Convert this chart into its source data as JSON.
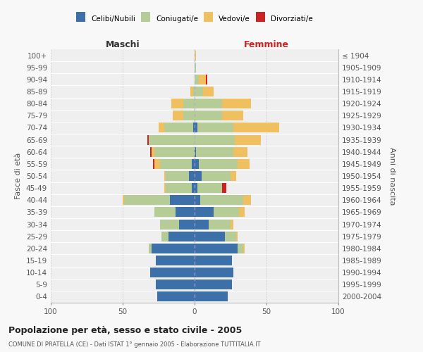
{
  "age_groups": [
    "0-4",
    "5-9",
    "10-14",
    "15-19",
    "20-24",
    "25-29",
    "30-34",
    "35-39",
    "40-44",
    "45-49",
    "50-54",
    "55-59",
    "60-64",
    "65-69",
    "70-74",
    "75-79",
    "80-84",
    "85-89",
    "90-94",
    "95-99",
    "100+"
  ],
  "birth_years": [
    "2000-2004",
    "1995-1999",
    "1990-1994",
    "1985-1989",
    "1980-1984",
    "1975-1979",
    "1970-1974",
    "1965-1969",
    "1960-1964",
    "1955-1959",
    "1950-1954",
    "1945-1949",
    "1940-1944",
    "1935-1939",
    "1930-1934",
    "1925-1929",
    "1920-1924",
    "1915-1919",
    "1910-1914",
    "1905-1909",
    "≤ 1904"
  ],
  "colors": {
    "celibi": "#3d6fa8",
    "coniugati": "#b5cc96",
    "vedovi": "#f0c060",
    "divorziati": "#cc2222"
  },
  "males": {
    "celibi": [
      26,
      27,
      31,
      27,
      30,
      18,
      11,
      13,
      17,
      2,
      4,
      2,
      0,
      0,
      1,
      0,
      0,
      0,
      0,
      0,
      0
    ],
    "coniugati": [
      0,
      0,
      0,
      0,
      2,
      5,
      13,
      15,
      32,
      18,
      16,
      22,
      28,
      32,
      20,
      8,
      8,
      1,
      0,
      0,
      0
    ],
    "vedovi": [
      0,
      0,
      0,
      0,
      0,
      0,
      0,
      0,
      1,
      1,
      1,
      4,
      2,
      0,
      4,
      7,
      8,
      2,
      0,
      0,
      0
    ],
    "divorziati": [
      0,
      0,
      0,
      0,
      0,
      0,
      0,
      0,
      0,
      0,
      0,
      1,
      1,
      1,
      0,
      0,
      0,
      0,
      0,
      0,
      0
    ]
  },
  "females": {
    "celibi": [
      23,
      26,
      27,
      26,
      30,
      21,
      10,
      13,
      4,
      2,
      5,
      3,
      1,
      0,
      2,
      0,
      0,
      0,
      0,
      0,
      0
    ],
    "coniugati": [
      0,
      0,
      0,
      0,
      4,
      8,
      15,
      18,
      30,
      17,
      20,
      27,
      26,
      28,
      25,
      19,
      19,
      6,
      3,
      1,
      0
    ],
    "vedovi": [
      0,
      0,
      0,
      0,
      1,
      1,
      2,
      4,
      5,
      0,
      4,
      8,
      10,
      18,
      32,
      15,
      20,
      7,
      5,
      0,
      1
    ],
    "divorziati": [
      0,
      0,
      0,
      0,
      0,
      0,
      0,
      0,
      0,
      3,
      0,
      0,
      0,
      0,
      0,
      0,
      0,
      0,
      1,
      0,
      0
    ]
  },
  "xlim": 100,
  "title": "Popolazione per età, sesso e stato civile - 2005",
  "subtitle": "COMUNE DI PRATELLA (CE) - Dati ISTAT 1° gennaio 2005 - Elaborazione TUTTITALIA.IT",
  "ylabel_left": "Fasce di età",
  "ylabel_right": "Anni di nascita",
  "header_left": "Maschi",
  "header_right": "Femmine",
  "bg_color": "#f8f8f8",
  "plot_bg": "#efefef",
  "legend_items": [
    "Celibi/Nubili",
    "Coniugati/e",
    "Vedovi/e",
    "Divorziati/e"
  ]
}
